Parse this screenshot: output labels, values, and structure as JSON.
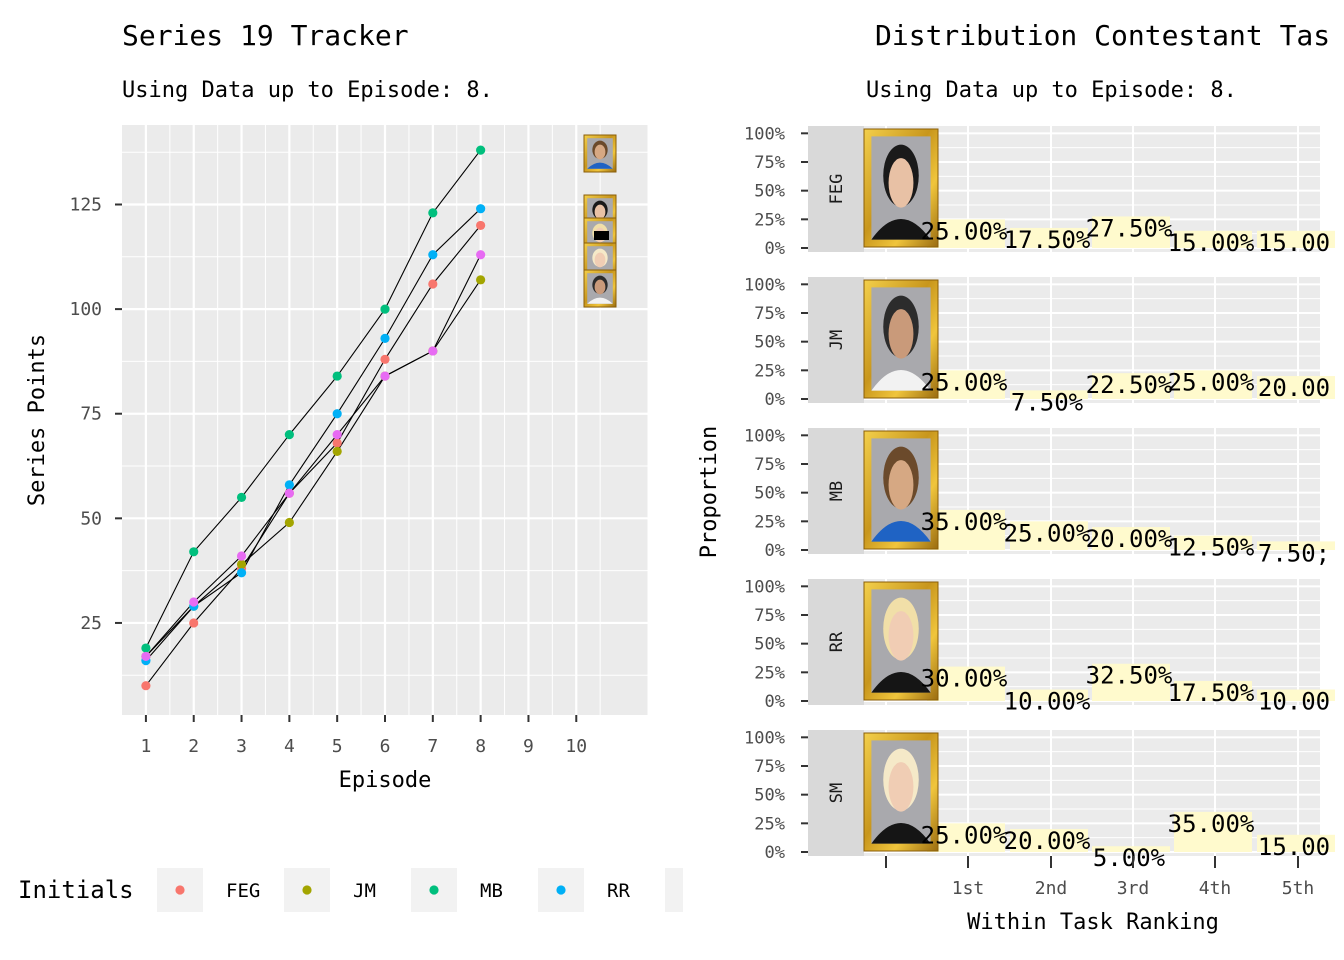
{
  "chart_data": [
    {
      "type": "line",
      "title": "Series 19 Tracker",
      "subtitle": "Using Data up to Episode: 8.",
      "xlabel": "Episode",
      "ylabel": "Series Points",
      "x_ticks": [
        1,
        2,
        3,
        4,
        5,
        6,
        7,
        8,
        9,
        10
      ],
      "y_ticks": [
        25,
        50,
        75,
        100,
        125
      ],
      "xlim": [
        0.5,
        11.5
      ],
      "ylim": [
        3,
        144
      ],
      "grid": true,
      "legend_title": "Initials",
      "legend_position": "bottom",
      "x": [
        1,
        2,
        3,
        4,
        5,
        6,
        7,
        8
      ],
      "series": [
        {
          "name": "FEG",
          "color": "#F8766D",
          "values": [
            10,
            25,
            38,
            56,
            68,
            88,
            106,
            120
          ]
        },
        {
          "name": "JM",
          "color": "#A3A500",
          "values": [
            17,
            29,
            39,
            49,
            66,
            84,
            90,
            107
          ]
        },
        {
          "name": "MB",
          "color": "#00BF7D",
          "values": [
            19,
            42,
            55,
            70,
            84,
            100,
            123,
            138
          ]
        },
        {
          "name": "RR",
          "color": "#00B0F6",
          "values": [
            16,
            29,
            37,
            58,
            75,
            93,
            113,
            124
          ]
        },
        {
          "name": "SM",
          "color": "#E76BF3",
          "values": [
            17,
            30,
            41,
            56,
            70,
            84,
            90,
            113
          ]
        }
      ]
    },
    {
      "type": "bar",
      "title": "Distribution Contestant Tas",
      "subtitle": "Using Data up to Episode: 8.",
      "xlabel": "Within Task Ranking",
      "ylabel": "Proportion",
      "categories": [
        "1st",
        "2nd",
        "3rd",
        "4th",
        "5th"
      ],
      "y_ticks": [
        "0%",
        "25%",
        "50%",
        "75%",
        "100%"
      ],
      "ylim": [
        0,
        1
      ],
      "bar_color": "#FFFACD",
      "facets": [
        {
          "label": "FEG",
          "values": [
            0.25,
            0.175,
            0.275,
            0.15,
            0.15
          ],
          "labels": [
            "25.00%",
            "17.50%",
            "27.50%",
            "15.00%",
            "15.00"
          ]
        },
        {
          "label": "JM",
          "values": [
            0.25,
            0.075,
            0.225,
            0.25,
            0.2
          ],
          "labels": [
            "25.00%",
            "7.50%",
            "22.50%",
            "25.00%",
            "20.00"
          ]
        },
        {
          "label": "MB",
          "values": [
            0.35,
            0.25,
            0.2,
            0.125,
            0.075
          ],
          "labels": [
            "35.00%",
            "25.00%",
            "20.00%",
            "12.50%",
            "7.50;"
          ]
        },
        {
          "label": "RR",
          "values": [
            0.3,
            0.1,
            0.325,
            0.175,
            0.1
          ],
          "labels": [
            "30.00%",
            "10.00%",
            "32.50%",
            "17.50%",
            "10.00"
          ]
        },
        {
          "label": "SM",
          "values": [
            0.25,
            0.2,
            0.05,
            0.35,
            0.15
          ],
          "labels": [
            "25.00%",
            "20.00%",
            "5.00%",
            "35.00%",
            "15.00"
          ]
        }
      ]
    }
  ]
}
